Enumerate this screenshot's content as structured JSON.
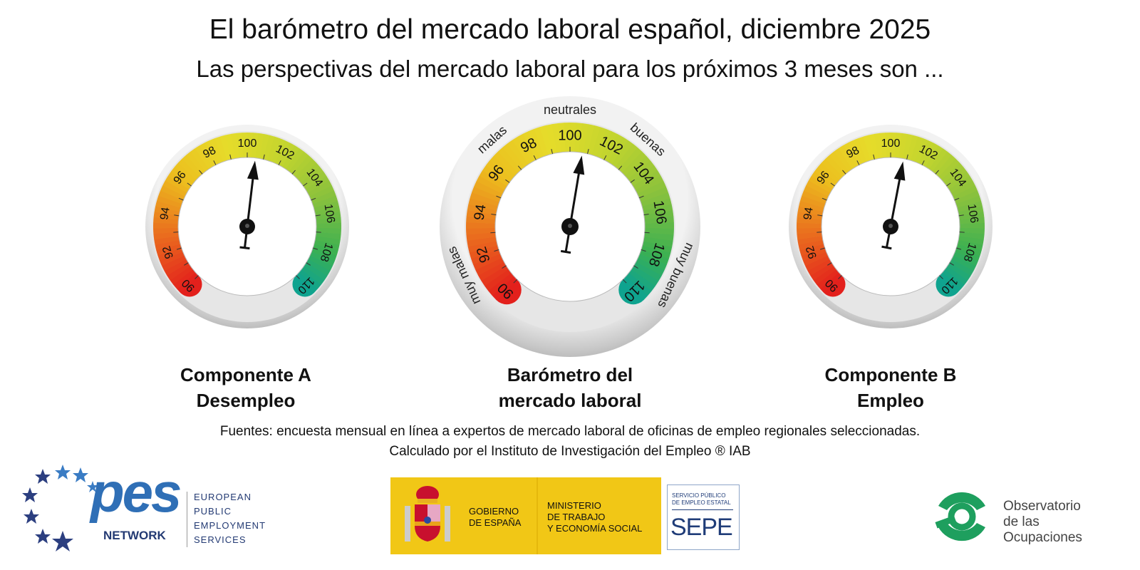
{
  "header": {
    "title": "El barómetro del mercado laboral español, diciembre 2025",
    "subtitle": "Las perspectivas del mercado laboral para los próximos 3 meses son ..."
  },
  "scale": {
    "min": 90,
    "max": 110,
    "tick_labels": [
      "90",
      "92",
      "94",
      "96",
      "98",
      "100",
      "102",
      "104",
      "106",
      "108",
      "110"
    ],
    "colors": {
      "90": "#e3201c",
      "93": "#ea6f1e",
      "96": "#ecbf1e",
      "99": "#e6dc2a",
      "102": "#c3d52e",
      "105": "#8cc23c",
      "108": "#3bb052",
      "110": "#0fa38f"
    }
  },
  "bezel_labels": [
    {
      "text": "muy malas",
      "at": 91.5
    },
    {
      "text": "malas",
      "at": 96.9
    },
    {
      "text": "neutrales",
      "at": 100
    },
    {
      "text": "buenas",
      "at": 103.1
    },
    {
      "text": "muy buenas",
      "at": 108.5
    }
  ],
  "gauges": [
    {
      "id": "componente-a",
      "value": 100.5,
      "label_lines": [
        "Componente A",
        "Desempleo"
      ]
    },
    {
      "id": "barometro",
      "value": 100.7,
      "label_lines": [
        "Barómetro del",
        "mercado laboral"
      ]
    },
    {
      "id": "componente-b",
      "value": 100.8,
      "label_lines": [
        "Componente B",
        "Empleo"
      ]
    }
  ],
  "sources": {
    "line1": "Fuentes: encuesta mensual en línea a expertos de mercado laboral de oficinas de empleo regionales seleccionadas.",
    "line2": "Calculado por el Instituto de Investigación del Empleo ® IAB"
  },
  "logos": {
    "pes": {
      "word": "pes",
      "network": "NETWORK",
      "lines": [
        "EUROPEAN",
        "PUBLIC",
        "EMPLOYMENT",
        "SERVICES"
      ]
    },
    "gobierno": {
      "line1": "GOBIERNO",
      "line2": "DE ESPAÑA"
    },
    "ministerio": {
      "line1": "MINISTERIO",
      "line2": "DE TRABAJO",
      "line3": "Y ECONOMÍA SOCIAL"
    },
    "sepe": {
      "small1": "SERVICIO PÚBLICO",
      "small2": "DE EMPLEO ESTATAL",
      "big": "SEPE"
    },
    "observatorio": {
      "line1": "Observatorio",
      "line2": "de las",
      "line3": "Ocupaciones"
    }
  }
}
